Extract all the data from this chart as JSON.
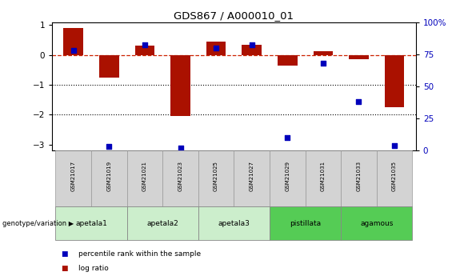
{
  "title": "GDS867 / A000010_01",
  "samples": [
    "GSM21017",
    "GSM21019",
    "GSM21021",
    "GSM21023",
    "GSM21025",
    "GSM21027",
    "GSM21029",
    "GSM21031",
    "GSM21033",
    "GSM21035"
  ],
  "log_ratio": [
    0.9,
    -0.75,
    0.3,
    -2.05,
    0.45,
    0.35,
    -0.35,
    0.12,
    -0.15,
    -1.75
  ],
  "percentile_rank": [
    78,
    3,
    82,
    2,
    80,
    82,
    10,
    68,
    38,
    4
  ],
  "groups": [
    {
      "name": "apetala1",
      "samples": [
        0,
        1
      ],
      "color": "#cceecc"
    },
    {
      "name": "apetala2",
      "samples": [
        2,
        3
      ],
      "color": "#cceecc"
    },
    {
      "name": "apetala3",
      "samples": [
        4,
        5
      ],
      "color": "#cceecc"
    },
    {
      "name": "pistillata",
      "samples": [
        6,
        7
      ],
      "color": "#55cc55"
    },
    {
      "name": "agamous",
      "samples": [
        8,
        9
      ],
      "color": "#55cc55"
    }
  ],
  "ylim": [
    -3.2,
    1.1
  ],
  "yticks_left": [
    -3,
    -2,
    -1,
    0,
    1
  ],
  "yticks_right": [
    0,
    25,
    50,
    75,
    100
  ],
  "bar_color": "#aa1100",
  "dot_color": "#0000bb",
  "zero_line_color": "#cc2200",
  "dotted_line_color": "#000000",
  "bar_width": 0.55,
  "dot_size": 22,
  "background_color": "#ffffff",
  "legend_log_ratio": "log ratio",
  "legend_percentile": "percentile rank within the sample",
  "genotype_label": "genotype/variation"
}
